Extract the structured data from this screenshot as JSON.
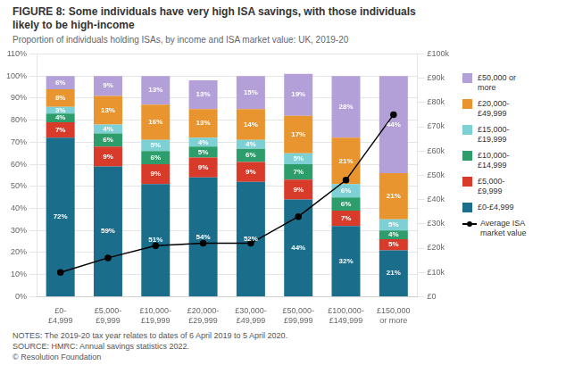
{
  "chart_data": {
    "type": "bar",
    "title": "FIGURE 8: Some individuals have very high ISA savings, with those individuals\nlikely to be high-income",
    "subtitle": "Proportion of individuals holding ISAs, by income and ISA market value: UK, 2019-20",
    "annotations": [
      "NOTES: The 2019-20 tax year relates to dates of 6 April 2019 to 5 April 2020.",
      "SOURCE: HMRC: Annual savings statistics 2022.",
      "© Resolution Foundation"
    ],
    "categories": [
      "£0-\n£4,999",
      "£5,000-\n£9,999",
      "£10,000-\n£19,999",
      "£20,000-\n£29,999",
      "£30,000-\n£49,999",
      "£50,000-\n£99,999",
      "£100,000-\n£149,999",
      "£150,000\nor more"
    ],
    "stacked": true,
    "grid": true,
    "legend": "right",
    "ylim": [
      0,
      110
    ],
    "yticks": [
      {
        "value": 0,
        "label": "0%"
      },
      {
        "value": 10,
        "label": "10%"
      },
      {
        "value": 20,
        "label": "20%"
      },
      {
        "value": 30,
        "label": "30%"
      },
      {
        "value": 40,
        "label": "40%"
      },
      {
        "value": 50,
        "label": "50%"
      },
      {
        "value": 60,
        "label": "60%"
      },
      {
        "value": 70,
        "label": "70%"
      },
      {
        "value": 80,
        "label": "80%"
      },
      {
        "value": 90,
        "label": "90%"
      },
      {
        "value": 100,
        "label": "100%"
      },
      {
        "value": 110,
        "label": "110%"
      }
    ],
    "y2lim": [
      0,
      100
    ],
    "y2ticks": [
      {
        "value": 0,
        "label": "£0"
      },
      {
        "value": 10,
        "label": "£10k"
      },
      {
        "value": 20,
        "label": "£20k"
      },
      {
        "value": 30,
        "label": "£30k"
      },
      {
        "value": 40,
        "label": "£40k"
      },
      {
        "value": 50,
        "label": "£50k"
      },
      {
        "value": 60,
        "label": "£60k"
      },
      {
        "value": 70,
        "label": "£70k"
      },
      {
        "value": 80,
        "label": "£80k"
      },
      {
        "value": 90,
        "label": "£90k"
      },
      {
        "value": 100,
        "label": "£100k"
      }
    ],
    "series": [
      {
        "name": "£0-£4,999",
        "color": "#1b6d8c",
        "data_labels": true,
        "values": [
          72,
          59,
          51,
          54,
          52,
          44,
          32,
          21
        ],
        "value_labels": [
          "72%",
          "59%",
          "51%",
          "54%",
          "52%",
          "44%",
          "32%",
          "21%"
        ]
      },
      {
        "name": "£5,000-\n£9,999",
        "color": "#d93b2a",
        "data_labels": true,
        "values": [
          7,
          9,
          9,
          9,
          9,
          9,
          7,
          5
        ],
        "value_labels": [
          "7%",
          "9%",
          "9%",
          "9%",
          "9%",
          "9%",
          "7%",
          "5%"
        ]
      },
      {
        "name": "£10,000-\n£14,999",
        "color": "#2d9e6b",
        "data_labels": true,
        "values": [
          4,
          6,
          6,
          5,
          6,
          7,
          6,
          4
        ],
        "value_labels": [
          "4%",
          "6%",
          "6%",
          "5%",
          "6%",
          "7%",
          "6%",
          "4%"
        ]
      },
      {
        "name": "£15,000-\n£19,999",
        "color": "#7dd0d4",
        "data_labels": true,
        "values": [
          3,
          4,
          5,
          4,
          4,
          5,
          6,
          5
        ],
        "value_labels": [
          "3%",
          "4%",
          "5%",
          "4%",
          "4%",
          "5%",
          "6%",
          "5%"
        ]
      },
      {
        "name": "£20,000-\n£49,999",
        "color": "#e89530",
        "data_labels": true,
        "values": [
          8,
          13,
          16,
          13,
          14,
          17,
          21,
          21
        ],
        "value_labels": [
          "8%",
          "13%",
          "16%",
          "13%",
          "14%",
          "17%",
          "21%",
          "21%"
        ]
      },
      {
        "name": "£50,000 or\nmore",
        "color": "#b3a0d8",
        "data_labels": true,
        "values": [
          6,
          9,
          13,
          13,
          15,
          19,
          28,
          44
        ],
        "value_labels": [
          "6%",
          "9%",
          "13%",
          "13%",
          "15%",
          "19%",
          "28%",
          "44%"
        ]
      },
      {
        "name": "Average ISA\nmarket value",
        "type": "line",
        "axis": "y2",
        "color": "#000000",
        "marker": "circle",
        "values": [
          10,
          16,
          21,
          22,
          22,
          33,
          48,
          75
        ]
      }
    ]
  }
}
